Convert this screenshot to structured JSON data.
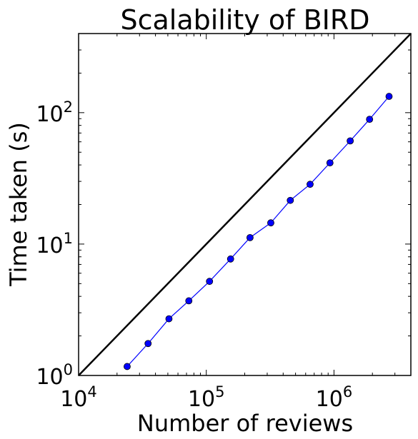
{
  "chart_data": {
    "type": "line",
    "title": "Scalability of BIRD",
    "xlabel": "Number of reviews",
    "ylabel": "Time taken (s)",
    "xscale": "log",
    "yscale": "log",
    "xlim": [
      10000,
      4000000
    ],
    "ylim": [
      1,
      400
    ],
    "x_ticks": [
      {
        "value": 10000,
        "base": "10",
        "exp": "4"
      },
      {
        "value": 100000,
        "base": "10",
        "exp": "5"
      },
      {
        "value": 1000000,
        "base": "10",
        "exp": "6"
      }
    ],
    "y_ticks": [
      {
        "value": 1,
        "base": "10",
        "exp": "0"
      },
      {
        "value": 10,
        "base": "10",
        "exp": "1"
      },
      {
        "value": 100,
        "base": "10",
        "exp": "2"
      }
    ],
    "grid": false,
    "series": [
      {
        "color": "#0000ff",
        "marker": "circle",
        "x": [
          24000,
          35000,
          51000,
          73000,
          106000,
          155000,
          220000,
          320000,
          455000,
          650000,
          930000,
          1340000,
          1900000,
          2700000
        ],
        "y": [
          1.17,
          1.75,
          2.7,
          3.7,
          5.2,
          7.7,
          11.2,
          14.5,
          21.5,
          28.5,
          41.5,
          61,
          89,
          133
        ]
      },
      {
        "color": "#000000",
        "style": "solid",
        "x": [
          10000,
          4000000
        ],
        "y": [
          1,
          400
        ]
      }
    ]
  }
}
